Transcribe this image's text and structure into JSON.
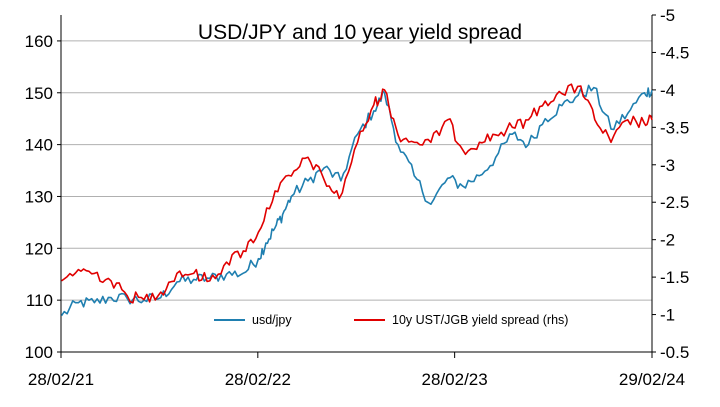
{
  "chart_data": {
    "type": "line",
    "title": "USD/JPY and 10 year yield spread",
    "colors": {
      "usdjpy": "#1f7fb0",
      "spread": "#e00000",
      "grid": "#b0b0b0",
      "axis": "#000000"
    },
    "x_axis": {
      "tick_labels": [
        "28/02/21",
        "28/02/22",
        "28/02/23",
        "29/02/24"
      ],
      "range": [
        "28/02/21",
        "29/02/24"
      ]
    },
    "y_left": {
      "ylim": [
        100,
        165
      ],
      "ticks": [
        100,
        110,
        120,
        130,
        140,
        150,
        160
      ],
      "tick_labels": [
        "100",
        "110",
        "120",
        "130",
        "140",
        "150",
        "160"
      ]
    },
    "y_right": {
      "inverted": true,
      "ylim": [
        -0.5,
        -5
      ],
      "ticks": [
        -0.5,
        -1,
        -1.5,
        -2,
        -2.5,
        -3,
        -3.5,
        -4,
        -4.5,
        -5
      ],
      "tick_labels": [
        "-0.5",
        "-1",
        "-1.5",
        "-2",
        "-2.5",
        "-3",
        "-3.5",
        "-4",
        "-4.5",
        "-5"
      ]
    },
    "grid": "horizontal",
    "legend_placement": "bottom-right",
    "series": [
      {
        "name": "usd/jpy",
        "axis": "left",
        "x": [
          "2021-03-01",
          "2021-04-01",
          "2021-05-01",
          "2021-06-01",
          "2021-07-01",
          "2021-08-01",
          "2021-09-01",
          "2021-10-01",
          "2021-11-01",
          "2021-12-01",
          "2022-01-01",
          "2022-02-01",
          "2022-03-01",
          "2022-03-15",
          "2022-04-01",
          "2022-04-15",
          "2022-05-01",
          "2022-06-01",
          "2022-07-01",
          "2022-08-01",
          "2022-09-01",
          "2022-10-01",
          "2022-10-21",
          "2022-11-15",
          "2022-12-15",
          "2023-01-15",
          "2023-02-15",
          "2023-03-15",
          "2023-04-15",
          "2023-05-15",
          "2023-06-15",
          "2023-07-15",
          "2023-08-15",
          "2023-09-15",
          "2023-10-15",
          "2023-11-13",
          "2023-12-15",
          "2024-01-15",
          "2024-02-15",
          "2024-02-29"
        ],
        "values": [
          107,
          109.5,
          109.5,
          110.5,
          110.3,
          110,
          110.5,
          113.5,
          114,
          114.2,
          115,
          115.2,
          118,
          121,
          124,
          126.5,
          130,
          133,
          135.5,
          133,
          142,
          146.5,
          150,
          140,
          134,
          128.5,
          133.5,
          132,
          134,
          137.5,
          142,
          140,
          145,
          147.5,
          149.5,
          151,
          143,
          146,
          150,
          150.5
        ]
      },
      {
        "name": "10y UST/JGB yield spread (rhs)",
        "axis": "right",
        "x": [
          "2021-03-01",
          "2021-04-01",
          "2021-05-01",
          "2021-06-01",
          "2021-07-01",
          "2021-08-01",
          "2021-09-01",
          "2021-10-01",
          "2021-11-01",
          "2021-12-01",
          "2022-01-01",
          "2022-02-01",
          "2022-03-01",
          "2022-04-01",
          "2022-05-01",
          "2022-06-01",
          "2022-07-01",
          "2022-07-29",
          "2022-09-01",
          "2022-10-01",
          "2022-10-21",
          "2022-11-15",
          "2022-12-15",
          "2023-01-15",
          "2023-02-15",
          "2023-03-15",
          "2023-04-15",
          "2023-05-15",
          "2023-06-15",
          "2023-07-15",
          "2023-08-15",
          "2023-09-15",
          "2023-10-20",
          "2023-11-15",
          "2023-12-15",
          "2024-01-15",
          "2024-02-15",
          "2024-02-29"
        ],
        "values": [
          -1.45,
          -1.6,
          -1.55,
          -1.45,
          -1.25,
          -1.2,
          -1.3,
          -1.55,
          -1.55,
          -1.45,
          -1.7,
          -1.85,
          -2.1,
          -2.65,
          -2.85,
          -3.1,
          -2.8,
          -2.55,
          -3.3,
          -3.8,
          -4.0,
          -3.4,
          -3.3,
          -3.3,
          -3.6,
          -3.2,
          -3.3,
          -3.4,
          -3.5,
          -3.6,
          -3.85,
          -3.95,
          -4.05,
          -3.6,
          -3.3,
          -3.6,
          -3.55,
          -3.6
        ]
      }
    ]
  }
}
